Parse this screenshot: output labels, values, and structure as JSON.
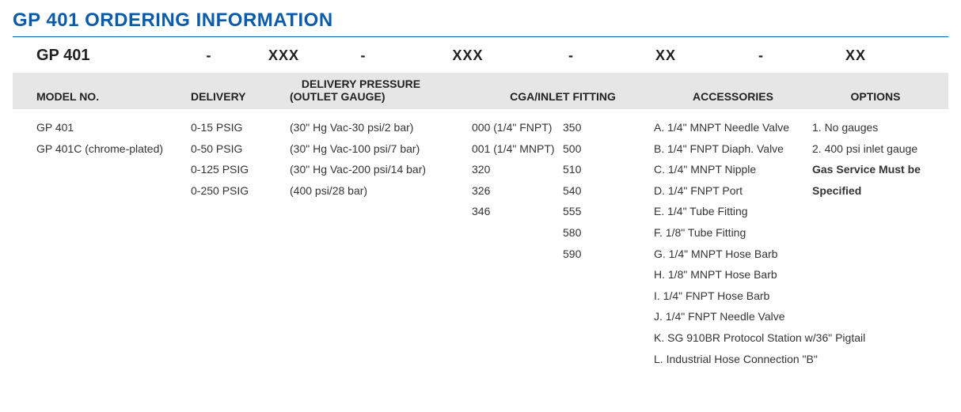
{
  "title": "GP 401 ORDERING INFORMATION",
  "code_row": {
    "model": "GP 401",
    "sep": "-",
    "x3": "XXX",
    "x2": "XX"
  },
  "headers": {
    "model_no": "MODEL NO.",
    "delivery": "DELIVERY",
    "pressure_top": "DELIVERY PRESSURE",
    "pressure_bottom": "(OUTLET GAUGE)",
    "cga": "CGA/INLET FITTING",
    "accessories": "ACCESSORIES",
    "options": "OPTIONS"
  },
  "model_no": [
    "GP 401",
    "GP 401C (chrome-plated)"
  ],
  "delivery": [
    "0-15 PSIG",
    "0-50 PSIG",
    "0-125 PSIG",
    "0-250 PSIG"
  ],
  "outlet_gauge": [
    "(30\" Hg Vac-30 psi/2 bar)",
    "(30\" Hg Vac-100 psi/7 bar)",
    "(30\" Hg Vac-200 psi/14 bar)",
    "(400 psi/28 bar)"
  ],
  "cga_left": [
    "000 (1/4\" FNPT)",
    "001 (1/4\" MNPT)",
    "320",
    "326",
    "346"
  ],
  "cga_right": [
    "350",
    "500",
    "510",
    "540",
    "555",
    "580",
    "590"
  ],
  "accessories": [
    "A. 1/4\" MNPT Needle Valve",
    "B. 1/4\" FNPT Diaph. Valve",
    "C. 1/4\" MNPT Nipple",
    "D. 1/4\" FNPT Port",
    "E. 1/4\" Tube Fitting",
    "F. 1/8\" Tube Fitting",
    "G. 1/4\" MNPT Hose Barb",
    "H. 1/8\" MNPT Hose Barb",
    "I. 1/4\" FNPT Hose Barb",
    "J. 1/4\" FNPT Needle Valve",
    "K. SG 910BR Protocol Station w/36\" Pigtail",
    "L. Industrial Hose Connection \"B\""
  ],
  "options": [
    "1. No gauges",
    "2. 400 psi inlet gauge"
  ],
  "options_bold": [
    "Gas Service Must be",
    "Specified"
  ],
  "colors": {
    "title": "#0a5cab",
    "band": "#e6e6e6",
    "text": "#333333",
    "bg": "#ffffff"
  }
}
